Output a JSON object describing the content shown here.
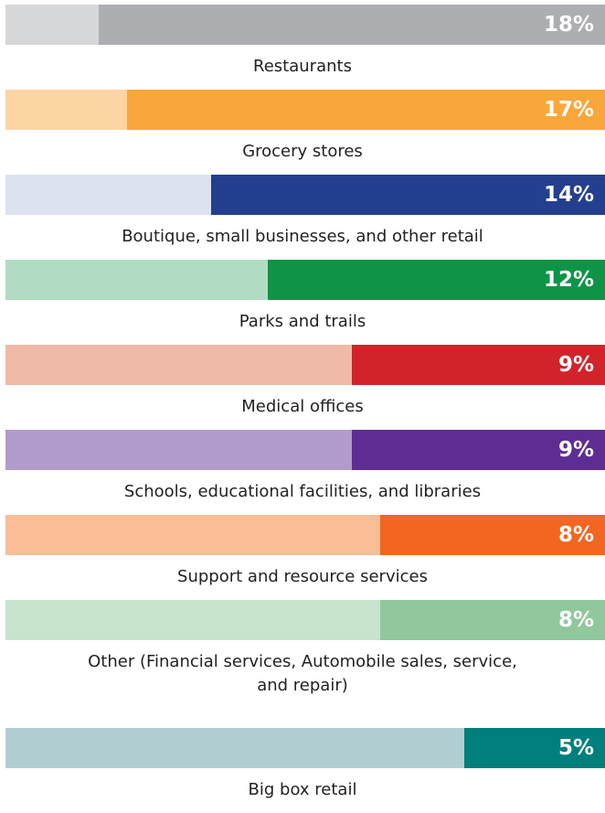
{
  "chart_data": {
    "type": "bar",
    "categories": [
      "Restaurants",
      "Grocery stores",
      "Boutique, small businesses, and other retail",
      "Parks and trails",
      "Medical offices",
      "Schools, educational facilities, and libraries",
      "Support and resource services",
      "Other (Financial services, Automobile sales, service, and repair)",
      "Big box retail"
    ],
    "values": [
      18,
      17,
      14,
      12,
      9,
      9,
      8,
      8,
      5
    ],
    "value_labels": [
      "18%",
      "17%",
      "14%",
      "12%",
      "9%",
      "9%",
      "8%",
      "8%",
      "5%"
    ],
    "colors": [
      "#adaeb1",
      "#f9a63a",
      "#243f8f",
      "#0e9447",
      "#d2232b",
      "#5e2d91",
      "#f26622",
      "#90c89c",
      "#007f7c"
    ],
    "track_colors": [
      "#d6d7d9",
      "#fdd5a5",
      "#dce2ef",
      "#b1dcc3",
      "#efb9a8",
      "#b09bca",
      "#fbbd96",
      "#c9e4cc",
      "#b0ced1"
    ]
  }
}
